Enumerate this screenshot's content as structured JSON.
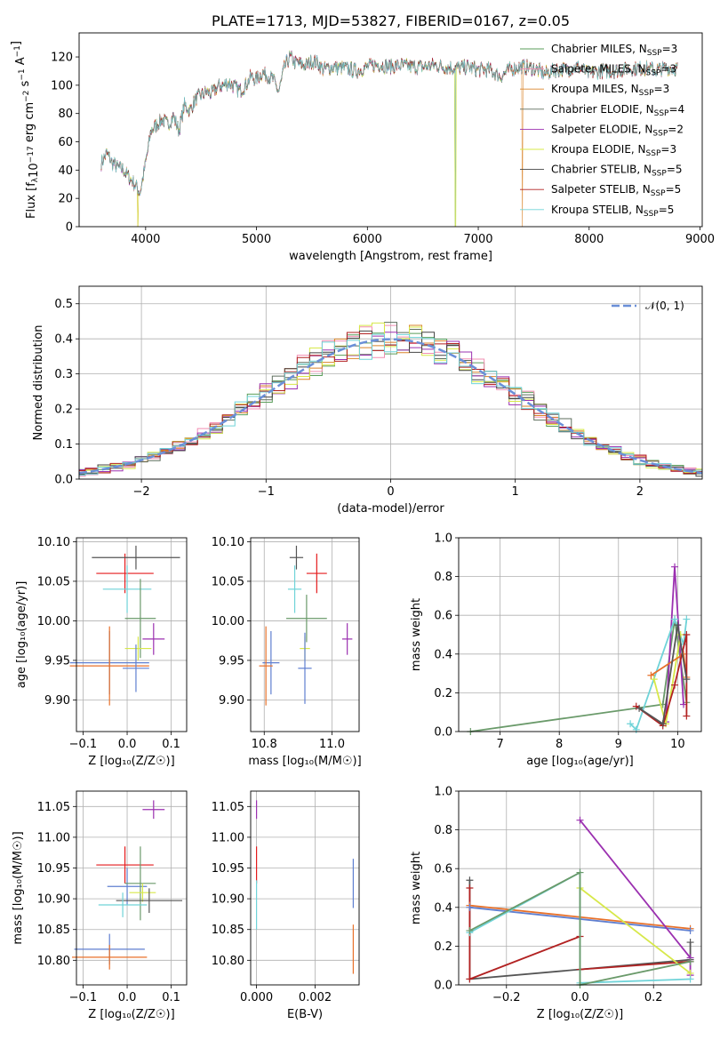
{
  "colors": {
    "series": [
      "#5a9e5a",
      "#f28db2",
      "#d9842a",
      "#5e6e5e",
      "#9b30b0",
      "#d7e84a",
      "#444444",
      "#b22222",
      "#6fd3d8"
    ],
    "errorbars": [
      "#e41a1c",
      "#5f7fd0",
      "#e8712a",
      "#6a9a6a",
      "#9b30b0",
      "#d7e84a",
      "#555555",
      "#b22222",
      "#6fd3d8"
    ],
    "normal": "#6a8fd8"
  },
  "chart_data": [
    {
      "id": "spectrum",
      "type": "line",
      "title": "PLATE=1713, MJD=53827, FIBERID=0167, z=0.05",
      "xlabel": "wavelength [Angstrom, rest frame]",
      "ylabel": "Flux [f_λ 10^-17 erg cm^-2 s^-1 A^-1]",
      "xlim": [
        3400,
        9020
      ],
      "ylim": [
        0,
        137
      ],
      "xticks": [
        4000,
        5000,
        6000,
        7000,
        8000,
        9000
      ],
      "yticks": [
        0,
        20,
        40,
        60,
        80,
        100,
        120
      ],
      "grid": false,
      "legend_position": "upper right",
      "legend": [
        {
          "label": "Chabrier MILES, N",
          "sub": "SSP",
          "tail": "=3"
        },
        {
          "label": "Salpeter MILES, N",
          "sub": "SSP",
          "tail": "=3"
        },
        {
          "label": "Kroupa MILES, N",
          "sub": "SSP",
          "tail": "=3"
        },
        {
          "label": "Chabrier ELODIE, N",
          "sub": "SSP",
          "tail": "=4"
        },
        {
          "label": "Salpeter ELODIE, N",
          "sub": "SSP",
          "tail": "=2"
        },
        {
          "label": "Kroupa ELODIE, N",
          "sub": "SSP",
          "tail": "=3"
        },
        {
          "label": "Chabrier STELIB, N",
          "sub": "SSP",
          "tail": "=5"
        },
        {
          "label": "Salpeter STELIB, N",
          "sub": "SSP",
          "tail": "=5"
        },
        {
          "label": "Kroupa STELIB, N",
          "sub": "SSP",
          "tail": "=5"
        }
      ],
      "envelope": [
        [
          3600,
          45
        ],
        [
          3650,
          52
        ],
        [
          3700,
          45
        ],
        [
          3750,
          42
        ],
        [
          3800,
          40
        ],
        [
          3850,
          35
        ],
        [
          3900,
          30
        ],
        [
          3950,
          24
        ],
        [
          4000,
          45
        ],
        [
          4050,
          68
        ],
        [
          4100,
          72
        ],
        [
          4150,
          76
        ],
        [
          4200,
          72
        ],
        [
          4250,
          78
        ],
        [
          4300,
          68
        ],
        [
          4350,
          86
        ],
        [
          4400,
          82
        ],
        [
          4450,
          90
        ],
        [
          4500,
          93
        ],
        [
          4550,
          95
        ],
        [
          4600,
          94
        ],
        [
          4650,
          99
        ],
        [
          4700,
          100
        ],
        [
          4750,
          102
        ],
        [
          4800,
          99
        ],
        [
          4850,
          96
        ],
        [
          4900,
          100
        ],
        [
          4950,
          106
        ],
        [
          5000,
          104
        ],
        [
          5050,
          109
        ],
        [
          5100,
          107
        ],
        [
          5150,
          104
        ],
        [
          5200,
          95
        ],
        [
          5250,
          112
        ],
        [
          5300,
          120
        ],
        [
          5350,
          116
        ],
        [
          5400,
          115
        ],
        [
          5450,
          114
        ],
        [
          5500,
          117
        ],
        [
          5550,
          116
        ],
        [
          5600,
          111
        ],
        [
          5700,
          113
        ],
        [
          5800,
          112
        ],
        [
          5900,
          110
        ],
        [
          6000,
          113
        ],
        [
          6100,
          115
        ],
        [
          6200,
          113
        ],
        [
          6300,
          114
        ],
        [
          6400,
          113
        ],
        [
          6500,
          113
        ],
        [
          6600,
          114
        ],
        [
          6700,
          113
        ],
        [
          6800,
          112
        ],
        [
          6900,
          113
        ],
        [
          7000,
          111
        ],
        [
          7100,
          111
        ],
        [
          7200,
          106
        ],
        [
          7300,
          112
        ],
        [
          7400,
          113
        ],
        [
          7500,
          112
        ],
        [
          7600,
          108
        ],
        [
          7700,
          111
        ],
        [
          7800,
          111
        ],
        [
          7900,
          113
        ],
        [
          8000,
          108
        ],
        [
          8100,
          110
        ],
        [
          8200,
          110
        ],
        [
          8300,
          111
        ],
        [
          8400,
          112
        ],
        [
          8500,
          112
        ],
        [
          8600,
          111
        ],
        [
          8700,
          112
        ],
        [
          8800,
          112
        ]
      ],
      "dropouts": [
        {
          "series": 2,
          "wavelength": 3930
        },
        {
          "series": 5,
          "wavelength": 3930
        },
        {
          "series": 0,
          "wavelength": 6790
        },
        {
          "series": 5,
          "wavelength": 6795
        },
        {
          "series": 2,
          "wavelength": 7400
        }
      ]
    },
    {
      "id": "residuals",
      "type": "line",
      "xlabel": "(data-model)/error",
      "ylabel": "Normed distribution",
      "xlim": [
        -2.5,
        2.5
      ],
      "ylim": [
        0,
        0.55
      ],
      "xticks": [
        -2,
        -1,
        0,
        1,
        2
      ],
      "yticks": [
        0.0,
        0.1,
        0.2,
        0.3,
        0.4,
        0.5
      ],
      "grid": true,
      "legend_position": "upper right",
      "legend": [
        {
          "label": "𝒩(0, 1)"
        }
      ],
      "bin_width": 0.1
    },
    {
      "id": "age_vs_Z",
      "type": "scatter",
      "xlabel": "Z [log₁₀(Z/Z☉)]",
      "ylabel": "age  [log₁₀(age/yr)]",
      "xlim": [
        -0.115,
        0.135
      ],
      "ylim": [
        9.86,
        10.105
      ],
      "xticks": [
        -0.1,
        0.0,
        0.1
      ],
      "yticks": [
        9.9,
        9.95,
        10.0,
        10.05,
        10.1
      ],
      "grid": true,
      "points": [
        {
          "x": -0.005,
          "y": 10.06,
          "xerr": 0.065,
          "yerr": 0.025,
          "c": 0
        },
        {
          "x": 0.02,
          "y": 10.08,
          "xerr": 0.1,
          "yerr": 0.015,
          "c": 6
        },
        {
          "x": 0.0,
          "y": 10.04,
          "xerr": 0.055,
          "yerr": 0.03,
          "c": 8
        },
        {
          "x": 0.03,
          "y": 10.003,
          "xerr": 0.035,
          "yerr": 0.05,
          "c": 3
        },
        {
          "x": 0.06,
          "y": 9.977,
          "xerr": 0.025,
          "yerr": 0.02,
          "c": 4
        },
        {
          "x": 0.025,
          "y": 9.965,
          "xerr": 0.03,
          "yerr": 0.015,
          "c": 5
        },
        {
          "x": -0.04,
          "y": 9.947,
          "xerr": 0.09,
          "yerr": 0.04,
          "c": 1
        },
        {
          "x": -0.04,
          "y": 9.943,
          "xerr": 0.09,
          "yerr": 0.05,
          "c": 2
        },
        {
          "x": 0.02,
          "y": 9.94,
          "xerr": 0.03,
          "yerr": 0.03,
          "c": 1
        }
      ]
    },
    {
      "id": "age_vs_mass",
      "type": "scatter",
      "xlabel": "mass [log₁₀(M/M☉)]",
      "ylabel": "",
      "xlim": [
        10.76,
        11.08
      ],
      "ylim": [
        9.86,
        10.105
      ],
      "xticks": [
        10.8,
        11.0
      ],
      "yticks": [
        9.9,
        9.95,
        10.0,
        10.05,
        10.1
      ],
      "grid": true,
      "points": [
        {
          "x": 10.955,
          "y": 10.06,
          "xerr": 0.03,
          "yerr": 0.025,
          "c": 0
        },
        {
          "x": 10.895,
          "y": 10.08,
          "xerr": 0.02,
          "yerr": 0.015,
          "c": 6
        },
        {
          "x": 10.89,
          "y": 10.04,
          "xerr": 0.02,
          "yerr": 0.03,
          "c": 8
        },
        {
          "x": 10.925,
          "y": 10.003,
          "xerr": 0.06,
          "yerr": 0.03,
          "c": 3
        },
        {
          "x": 11.045,
          "y": 9.977,
          "xerr": 0.015,
          "yerr": 0.02,
          "c": 4
        },
        {
          "x": 10.92,
          "y": 9.965,
          "xerr": 0.015,
          "yerr": 0.015,
          "c": 5
        },
        {
          "x": 10.82,
          "y": 9.947,
          "xerr": 0.025,
          "yerr": 0.04,
          "c": 1
        },
        {
          "x": 10.805,
          "y": 9.943,
          "xerr": 0.02,
          "yerr": 0.05,
          "c": 2
        },
        {
          "x": 10.92,
          "y": 9.94,
          "xerr": 0.02,
          "yerr": 0.045,
          "c": 1
        }
      ]
    },
    {
      "id": "weight_vs_age",
      "type": "line",
      "xlabel": "age  [log₁₀(age/yr)]",
      "ylabel": "mass weight",
      "xlim": [
        6.3,
        10.4
      ],
      "ylim": [
        0,
        1.0
      ],
      "xticks": [
        7,
        8,
        9,
        10
      ],
      "yticks": [
        0.0,
        0.2,
        0.4,
        0.6,
        0.8,
        1.0
      ],
      "grid": true,
      "series": [
        {
          "c": 3,
          "pts": [
            [
              6.5,
              0.0
            ],
            [
              9.75,
              0.14
            ],
            [
              9.95,
              0.58
            ],
            [
              10.15,
              0.15
            ]
          ]
        },
        {
          "c": 4,
          "pts": [
            [
              9.8,
              0.05
            ],
            [
              9.95,
              0.85
            ],
            [
              10.1,
              0.14
            ]
          ]
        },
        {
          "c": 8,
          "pts": [
            [
              9.2,
              0.04
            ],
            [
              9.3,
              0.01
            ],
            [
              9.95,
              0.58
            ],
            [
              10.1,
              0.45
            ],
            [
              10.15,
              0.58
            ]
          ]
        },
        {
          "c": 5,
          "pts": [
            [
              9.6,
              0.27
            ],
            [
              9.8,
              0.04
            ],
            [
              10.05,
              0.5
            ]
          ]
        },
        {
          "c": 2,
          "pts": [
            [
              9.55,
              0.29
            ],
            [
              10.1,
              0.4
            ],
            [
              10.15,
              0.28
            ]
          ]
        },
        {
          "c": 7,
          "pts": [
            [
              9.3,
              0.13
            ],
            [
              9.75,
              0.03
            ],
            [
              9.95,
              0.24
            ],
            [
              10.15,
              0.5
            ],
            [
              10.15,
              0.08
            ]
          ]
        },
        {
          "c": 6,
          "pts": [
            [
              9.35,
              0.12
            ],
            [
              9.75,
              0.04
            ],
            [
              10.0,
              0.55
            ],
            [
              10.15,
              0.27
            ]
          ]
        }
      ]
    },
    {
      "id": "mass_vs_Z",
      "type": "scatter",
      "xlabel": "Z [log₁₀(Z/Z☉)]",
      "ylabel": "mass [log₁₀(M/M☉)]",
      "xlim": [
        -0.115,
        0.135
      ],
      "ylim": [
        10.76,
        11.075
      ],
      "xticks": [
        -0.1,
        0.0,
        0.1
      ],
      "yticks": [
        10.8,
        10.85,
        10.9,
        10.95,
        11.0,
        11.05
      ],
      "grid": true,
      "points": [
        {
          "x": 0.06,
          "y": 11.045,
          "xerr": 0.025,
          "yerr": 0.015,
          "c": 4
        },
        {
          "x": -0.005,
          "y": 10.955,
          "xerr": 0.065,
          "yerr": 0.03,
          "c": 0
        },
        {
          "x": 0.0,
          "y": 10.92,
          "xerr": 0.045,
          "yerr": 0.03,
          "c": 1
        },
        {
          "x": 0.03,
          "y": 10.925,
          "xerr": 0.035,
          "yerr": 0.06,
          "c": 3
        },
        {
          "x": 0.035,
          "y": 10.91,
          "xerr": 0.03,
          "yerr": 0.015,
          "c": 5
        },
        {
          "x": 0.05,
          "y": 10.897,
          "xerr": 0.075,
          "yerr": 0.02,
          "c": 6
        },
        {
          "x": -0.01,
          "y": 10.89,
          "xerr": 0.055,
          "yerr": 0.02,
          "c": 8
        },
        {
          "x": -0.04,
          "y": 10.818,
          "xerr": 0.08,
          "yerr": 0.025,
          "c": 1
        },
        {
          "x": -0.04,
          "y": 10.805,
          "xerr": 0.085,
          "yerr": 0.02,
          "c": 2
        }
      ]
    },
    {
      "id": "mass_vs_ebv",
      "type": "scatter",
      "xlabel": "E(B-V)",
      "ylabel": "",
      "xlim": [
        -0.0002,
        0.0035
      ],
      "ylim": [
        10.76,
        11.075
      ],
      "xticks": [
        0.0,
        0.002
      ],
      "yticks": [
        10.8,
        10.85,
        10.9,
        10.95,
        11.0,
        11.05
      ],
      "grid": true,
      "points": [
        {
          "x": 0.0,
          "y": 11.045,
          "xerr": 0.0,
          "yerr": 0.015,
          "c": 4
        },
        {
          "x": 0.0,
          "y": 10.955,
          "xerr": 0.0,
          "yerr": 0.03,
          "c": 0
        },
        {
          "x": 0.0,
          "y": 10.89,
          "xerr": 0.0,
          "yerr": 0.04,
          "c": 8
        },
        {
          "x": 0.0033,
          "y": 10.925,
          "xerr": 0.0,
          "yerr": 0.04,
          "c": 1
        },
        {
          "x": 0.0033,
          "y": 10.818,
          "xerr": 0.0,
          "yerr": 0.04,
          "c": 2
        }
      ]
    },
    {
      "id": "weight_vs_Z",
      "type": "line",
      "xlabel": "Z [log₁₀(Z/Z☉)]",
      "ylabel": "mass weight",
      "xlim": [
        -0.33,
        0.33
      ],
      "ylim": [
        0,
        1.0
      ],
      "xticks": [
        -0.2,
        0.0,
        0.2
      ],
      "yticks": [
        0.0,
        0.2,
        0.4,
        0.6,
        0.8,
        1.0
      ],
      "grid": true,
      "series": [
        {
          "c": 6,
          "pts": [
            [
              -0.3,
              0.54
            ],
            [
              -0.3,
              0.03
            ],
            [
              0.3,
              0.13
            ],
            [
              0.3,
              0.22
            ]
          ]
        },
        {
          "c": 7,
          "pts": [
            [
              -0.3,
              0.5
            ],
            [
              -0.3,
              0.03
            ],
            [
              0.0,
              0.25
            ]
          ]
        },
        {
          "c": 7,
          "pts": [
            [
              0.0,
              0.08
            ],
            [
              0.3,
              0.12
            ]
          ]
        },
        {
          "c": 2,
          "pts": [
            [
              -0.3,
              0.41
            ],
            [
              0.3,
              0.29
            ]
          ]
        },
        {
          "c": 1,
          "pts": [
            [
              -0.3,
              0.4
            ],
            [
              0.3,
              0.28
            ]
          ]
        },
        {
          "c": 4,
          "pts": [
            [
              0.0,
              0.85
            ],
            [
              0.3,
              0.14
            ],
            [
              0.3,
              0.05
            ]
          ]
        },
        {
          "c": 5,
          "pts": [
            [
              0.0,
              0.5
            ],
            [
              0.3,
              0.06
            ]
          ]
        },
        {
          "c": 8,
          "pts": [
            [
              -0.3,
              0.27
            ],
            [
              0.0,
              0.58
            ],
            [
              0.0,
              0.01
            ],
            [
              0.3,
              0.03
            ]
          ]
        },
        {
          "c": 3,
          "pts": [
            [
              -0.3,
              0.28
            ],
            [
              0.0,
              0.58
            ],
            [
              0.0,
              0.0
            ],
            [
              0.3,
              0.12
            ]
          ]
        }
      ]
    }
  ]
}
